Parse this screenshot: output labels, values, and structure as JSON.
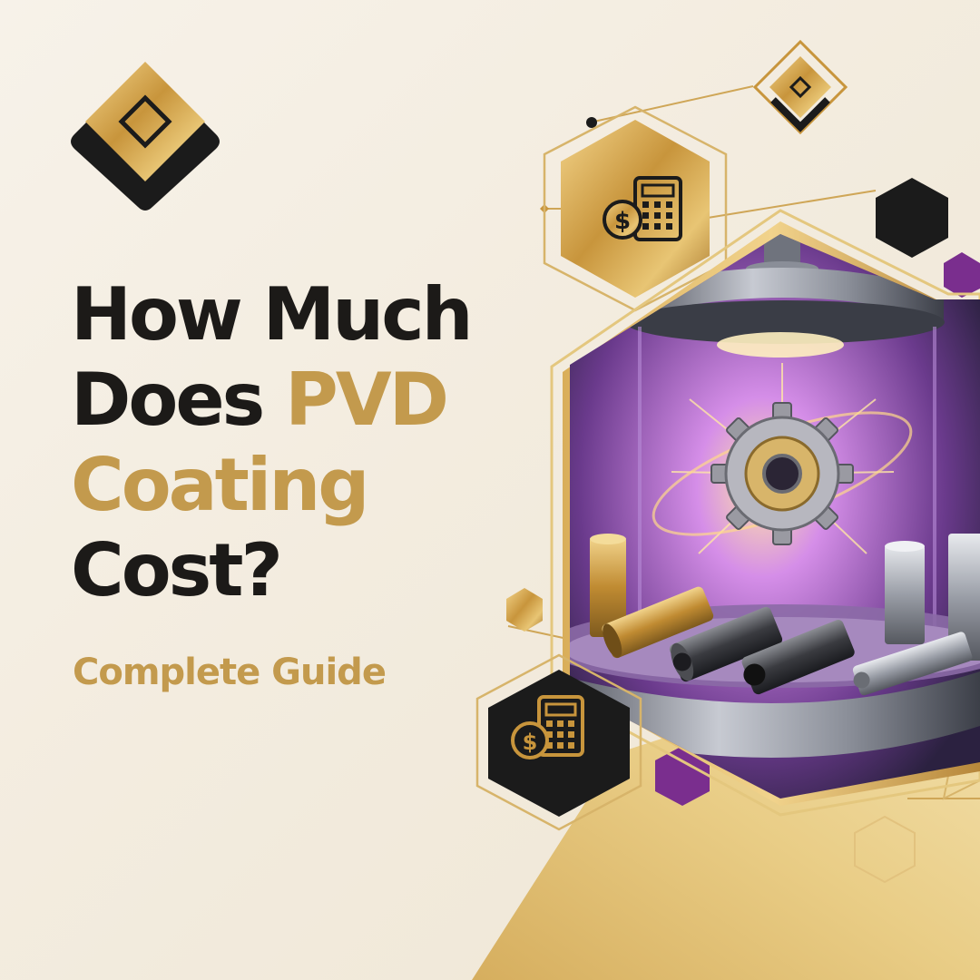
{
  "headline": {
    "line1": "How Much",
    "line2_dark": "Does ",
    "line2_gold": "PVD",
    "line3": "Coating",
    "line4": "Cost?"
  },
  "subtitle": "Complete Guide",
  "colors": {
    "background": "#f3ecdf",
    "headline_dark": "#1c1a18",
    "accent_gold": "#c39a4d",
    "purple": "#7a2e8e",
    "black": "#1a1a1a"
  },
  "icons": {
    "logo": "diamond-logo-icon",
    "cost_top": "calculator-dollar-icon",
    "cost_bottom": "calculator-dollar-icon",
    "illustration": "pvd-coating-chamber-illustration"
  }
}
